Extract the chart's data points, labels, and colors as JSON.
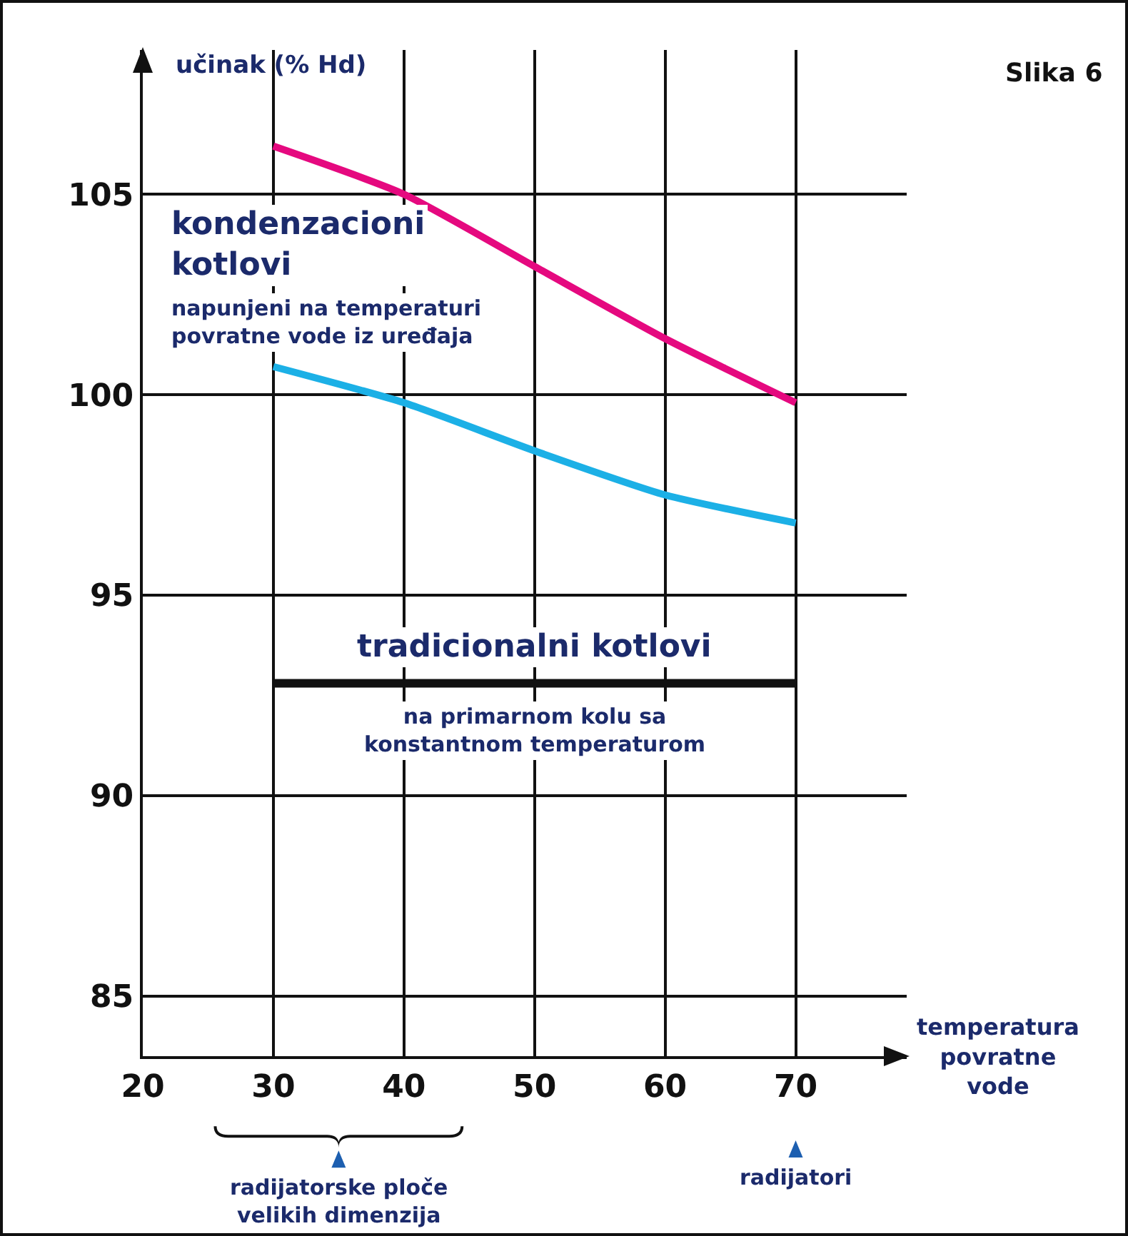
{
  "chart_data": {
    "type": "line",
    "xlabel": "temperatura\npovratne\nvode",
    "ylabel": "učinak (% Hd)",
    "x": [
      30,
      40,
      50,
      60,
      70
    ],
    "series": [
      {
        "color": "#e5097f",
        "values": [
          106.2,
          105.0,
          103.2,
          101.4,
          99.8
        ]
      },
      {
        "color": "#1cb0e6",
        "values": [
          100.7,
          99.8,
          98.6,
          97.5,
          96.8
        ]
      },
      {
        "color": "#111111",
        "values": [
          92.8,
          92.8,
          92.8,
          92.8,
          92.8
        ]
      }
    ],
    "xlim": [
      20,
      78.5
    ],
    "ylim": [
      83.5,
      108.6
    ],
    "xticks": [
      20,
      30,
      40,
      50,
      60,
      70
    ],
    "yticks": [
      85,
      90,
      95,
      100,
      105
    ],
    "grid": true,
    "marker": "none",
    "line_style": "solid",
    "annotations": [
      "Slika 6",
      "kondenzacioni\nkotlovi",
      "napunjeni na temperaturi\npovratne vode iz uređaja",
      "tradicionalni kotlovi",
      "na primarnom kolu sa\nkonstantnom temperaturom",
      "radijatorske ploče\nvelikih dimenzija",
      "radijatori"
    ]
  }
}
